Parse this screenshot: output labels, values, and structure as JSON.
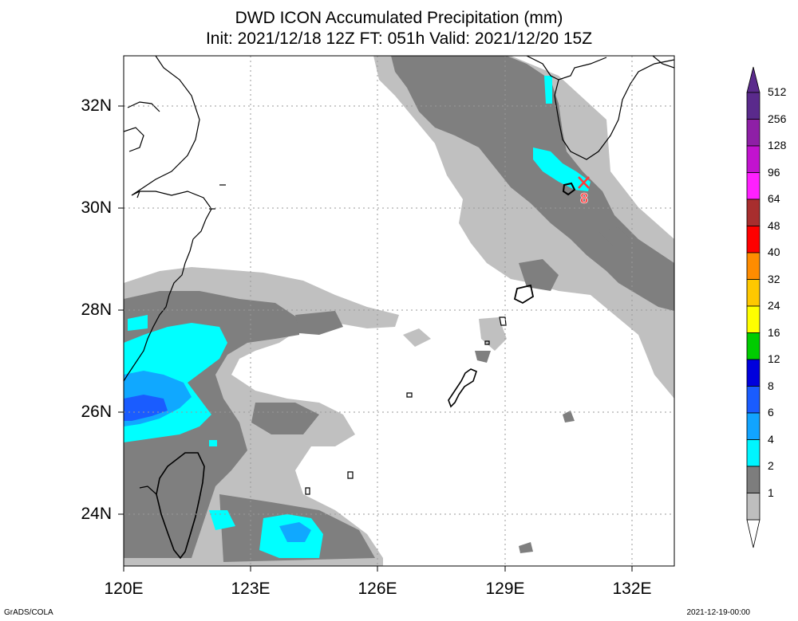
{
  "title": {
    "line1": "DWD ICON Accumulated Precipitation (mm)",
    "line2": "Init: 2021/12/18 12Z  FT: 051h  Valid: 2021/12/20 15Z"
  },
  "axes": {
    "lat_labels": [
      "32N",
      "30N",
      "28N",
      "26N",
      "24N"
    ],
    "lon_labels": [
      "120E",
      "123E",
      "126E",
      "129E",
      "132E"
    ]
  },
  "marker": {
    "label": "8",
    "symbol": "x"
  },
  "colorbar": {
    "levels": [
      "512",
      "256",
      "128",
      "96",
      "64",
      "48",
      "40",
      "32",
      "24",
      "16",
      "12",
      "8",
      "6",
      "4",
      "2",
      "1"
    ],
    "colors": [
      "#5a2a8c",
      "#8e1fa6",
      "#c213cf",
      "#ff20ff",
      "#a82e2e",
      "#ff0000",
      "#ff8c00",
      "#ffc800",
      "#ffff00",
      "#00cc00",
      "#0000dd",
      "#1a5cff",
      "#11a4ff",
      "#00f5ff",
      "#7d7d7d",
      "#bebebe"
    ]
  },
  "footer": {
    "left": "GrADS/COLA",
    "right": "2021-12-19-00:00"
  },
  "colors": {
    "light_gray": "#c0c0c0",
    "dark_gray": "#7f7f7f",
    "cyan": "#00ffff",
    "sky": "#10a8ff",
    "blue": "#1a5cff"
  }
}
